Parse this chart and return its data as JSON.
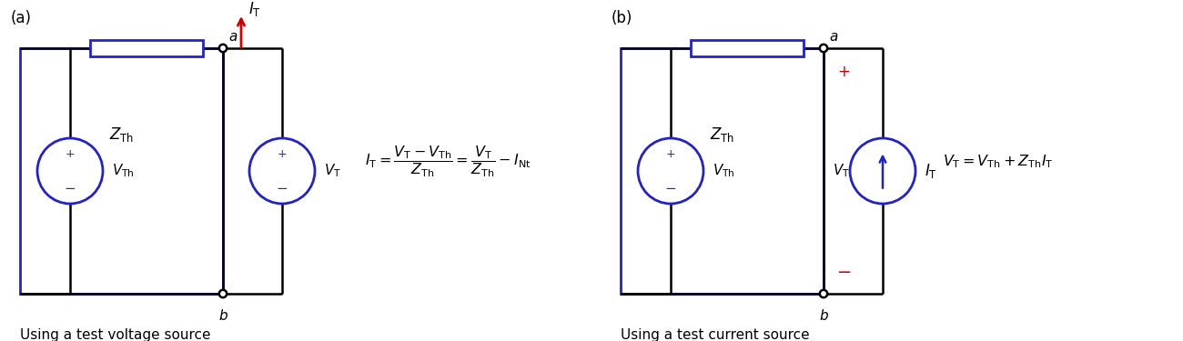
{
  "blue": "#2222cc",
  "red": "#cc0000",
  "black": "#000000",
  "bg": "#ffffff",
  "label_a": "(a)",
  "label_b": "(b)",
  "caption_a": "Using a test voltage source",
  "caption_b": "Using a test current source",
  "eq_a": "$I_{\\mathrm{T}}=\\dfrac{V_{\\mathrm{T}}-V_{\\mathrm{Th}}}{Z_{\\mathrm{Th}}}=\\dfrac{V_{\\mathrm{T}}}{Z_{\\mathrm{Th}}}-I_{\\mathrm{Nt}}$",
  "eq_b": "$V_{\\mathrm{T}}=V_{\\mathrm{Th}}+Z_{\\mathrm{Th}}I_{\\mathrm{T}}$"
}
